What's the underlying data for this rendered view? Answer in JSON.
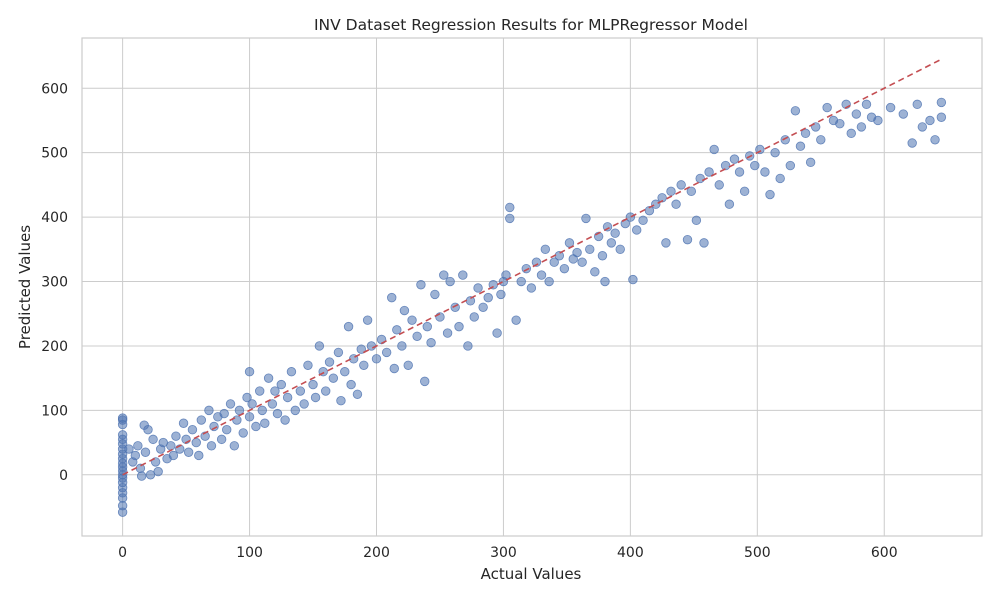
{
  "chart_data": {
    "type": "scatter",
    "title": "INV Dataset Regression Results for MLPRegressor Model",
    "xlabel": "Actual Values",
    "ylabel": "Predicted Values",
    "xlim": [
      -32,
      677
    ],
    "ylim": [
      -95,
      678
    ],
    "xticks": [
      0,
      100,
      200,
      300,
      400,
      500,
      600
    ],
    "yticks": [
      0,
      100,
      200,
      300,
      400,
      500,
      600
    ],
    "grid": true,
    "colors": {
      "points": "#4c72b0",
      "reference_line": "#c44e52",
      "grid": "#cccccc",
      "background": "#ffffff"
    },
    "reference_line": {
      "style": "dashed",
      "x": [
        0,
        645
      ],
      "y": [
        0,
        645
      ]
    },
    "series": [
      {
        "points": [
          [
            0,
            -58
          ],
          [
            0,
            -48
          ],
          [
            0,
            -36
          ],
          [
            0,
            -28
          ],
          [
            0,
            -20
          ],
          [
            0,
            -12
          ],
          [
            0,
            -5
          ],
          [
            0,
            0
          ],
          [
            0,
            6
          ],
          [
            0,
            12
          ],
          [
            0,
            18
          ],
          [
            0,
            25
          ],
          [
            0,
            32
          ],
          [
            0,
            40
          ],
          [
            0,
            48
          ],
          [
            0,
            55
          ],
          [
            0,
            62
          ],
          [
            0,
            78
          ],
          [
            0,
            85
          ],
          [
            0,
            88
          ],
          [
            5,
            40
          ],
          [
            8,
            20
          ],
          [
            10,
            30
          ],
          [
            12,
            45
          ],
          [
            14,
            10
          ],
          [
            15,
            -2
          ],
          [
            17,
            77
          ],
          [
            18,
            35
          ],
          [
            20,
            70
          ],
          [
            22,
            0
          ],
          [
            24,
            55
          ],
          [
            26,
            20
          ],
          [
            28,
            5
          ],
          [
            30,
            40
          ],
          [
            32,
            50
          ],
          [
            35,
            25
          ],
          [
            38,
            45
          ],
          [
            40,
            30
          ],
          [
            42,
            60
          ],
          [
            45,
            40
          ],
          [
            48,
            80
          ],
          [
            50,
            55
          ],
          [
            52,
            35
          ],
          [
            55,
            70
          ],
          [
            58,
            50
          ],
          [
            60,
            30
          ],
          [
            62,
            85
          ],
          [
            65,
            60
          ],
          [
            68,
            100
          ],
          [
            70,
            45
          ],
          [
            72,
            75
          ],
          [
            75,
            90
          ],
          [
            78,
            55
          ],
          [
            80,
            95
          ],
          [
            82,
            70
          ],
          [
            85,
            110
          ],
          [
            88,
            45
          ],
          [
            90,
            85
          ],
          [
            92,
            100
          ],
          [
            95,
            65
          ],
          [
            98,
            120
          ],
          [
            100,
            90
          ],
          [
            100,
            160
          ],
          [
            102,
            110
          ],
          [
            105,
            75
          ],
          [
            108,
            130
          ],
          [
            110,
            100
          ],
          [
            112,
            80
          ],
          [
            115,
            150
          ],
          [
            118,
            110
          ],
          [
            120,
            130
          ],
          [
            122,
            95
          ],
          [
            125,
            140
          ],
          [
            128,
            85
          ],
          [
            130,
            120
          ],
          [
            133,
            160
          ],
          [
            136,
            100
          ],
          [
            140,
            130
          ],
          [
            143,
            110
          ],
          [
            146,
            170
          ],
          [
            150,
            140
          ],
          [
            152,
            120
          ],
          [
            155,
            200
          ],
          [
            158,
            160
          ],
          [
            160,
            130
          ],
          [
            163,
            175
          ],
          [
            166,
            150
          ],
          [
            170,
            190
          ],
          [
            172,
            115
          ],
          [
            175,
            160
          ],
          [
            178,
            230
          ],
          [
            180,
            140
          ],
          [
            182,
            180
          ],
          [
            185,
            125
          ],
          [
            188,
            195
          ],
          [
            190,
            170
          ],
          [
            193,
            240
          ],
          [
            196,
            200
          ],
          [
            200,
            180
          ],
          [
            204,
            210
          ],
          [
            208,
            190
          ],
          [
            212,
            275
          ],
          [
            214,
            165
          ],
          [
            216,
            225
          ],
          [
            220,
            200
          ],
          [
            222,
            255
          ],
          [
            225,
            170
          ],
          [
            228,
            240
          ],
          [
            232,
            215
          ],
          [
            235,
            295
          ],
          [
            238,
            145
          ],
          [
            240,
            230
          ],
          [
            243,
            205
          ],
          [
            246,
            280
          ],
          [
            250,
            245
          ],
          [
            253,
            310
          ],
          [
            256,
            220
          ],
          [
            258,
            300
          ],
          [
            262,
            260
          ],
          [
            265,
            230
          ],
          [
            268,
            310
          ],
          [
            272,
            200
          ],
          [
            274,
            270
          ],
          [
            277,
            245
          ],
          [
            280,
            290
          ],
          [
            284,
            260
          ],
          [
            288,
            275
          ],
          [
            292,
            295
          ],
          [
            295,
            220
          ],
          [
            298,
            280
          ],
          [
            300,
            300
          ],
          [
            302,
            310
          ],
          [
            305,
            415
          ],
          [
            305,
            398
          ],
          [
            310,
            240
          ],
          [
            314,
            300
          ],
          [
            318,
            320
          ],
          [
            322,
            290
          ],
          [
            326,
            330
          ],
          [
            330,
            310
          ],
          [
            333,
            350
          ],
          [
            336,
            300
          ],
          [
            340,
            330
          ],
          [
            344,
            340
          ],
          [
            348,
            320
          ],
          [
            352,
            360
          ],
          [
            355,
            335
          ],
          [
            358,
            345
          ],
          [
            362,
            330
          ],
          [
            365,
            398
          ],
          [
            368,
            350
          ],
          [
            372,
            315
          ],
          [
            375,
            370
          ],
          [
            378,
            340
          ],
          [
            380,
            300
          ],
          [
            382,
            385
          ],
          [
            385,
            360
          ],
          [
            388,
            375
          ],
          [
            392,
            350
          ],
          [
            396,
            390
          ],
          [
            400,
            400
          ],
          [
            402,
            303
          ],
          [
            405,
            380
          ],
          [
            410,
            395
          ],
          [
            415,
            410
          ],
          [
            420,
            420
          ],
          [
            425,
            430
          ],
          [
            428,
            360
          ],
          [
            432,
            440
          ],
          [
            436,
            420
          ],
          [
            440,
            450
          ],
          [
            445,
            365
          ],
          [
            448,
            440
          ],
          [
            452,
            395
          ],
          [
            455,
            460
          ],
          [
            458,
            360
          ],
          [
            462,
            470
          ],
          [
            466,
            505
          ],
          [
            470,
            450
          ],
          [
            475,
            480
          ],
          [
            478,
            420
          ],
          [
            482,
            490
          ],
          [
            486,
            470
          ],
          [
            490,
            440
          ],
          [
            494,
            495
          ],
          [
            498,
            480
          ],
          [
            502,
            505
          ],
          [
            506,
            470
          ],
          [
            510,
            435
          ],
          [
            514,
            500
          ],
          [
            518,
            460
          ],
          [
            522,
            520
          ],
          [
            526,
            480
          ],
          [
            530,
            565
          ],
          [
            534,
            510
          ],
          [
            538,
            530
          ],
          [
            542,
            485
          ],
          [
            546,
            540
          ],
          [
            550,
            520
          ],
          [
            555,
            570
          ],
          [
            560,
            550
          ],
          [
            565,
            545
          ],
          [
            570,
            575
          ],
          [
            574,
            530
          ],
          [
            578,
            560
          ],
          [
            582,
            540
          ],
          [
            586,
            575
          ],
          [
            590,
            555
          ],
          [
            595,
            550
          ],
          [
            605,
            570
          ],
          [
            615,
            560
          ],
          [
            622,
            515
          ],
          [
            626,
            575
          ],
          [
            630,
            540
          ],
          [
            636,
            550
          ],
          [
            640,
            520
          ],
          [
            645,
            578
          ],
          [
            645,
            555
          ]
        ]
      }
    ]
  }
}
